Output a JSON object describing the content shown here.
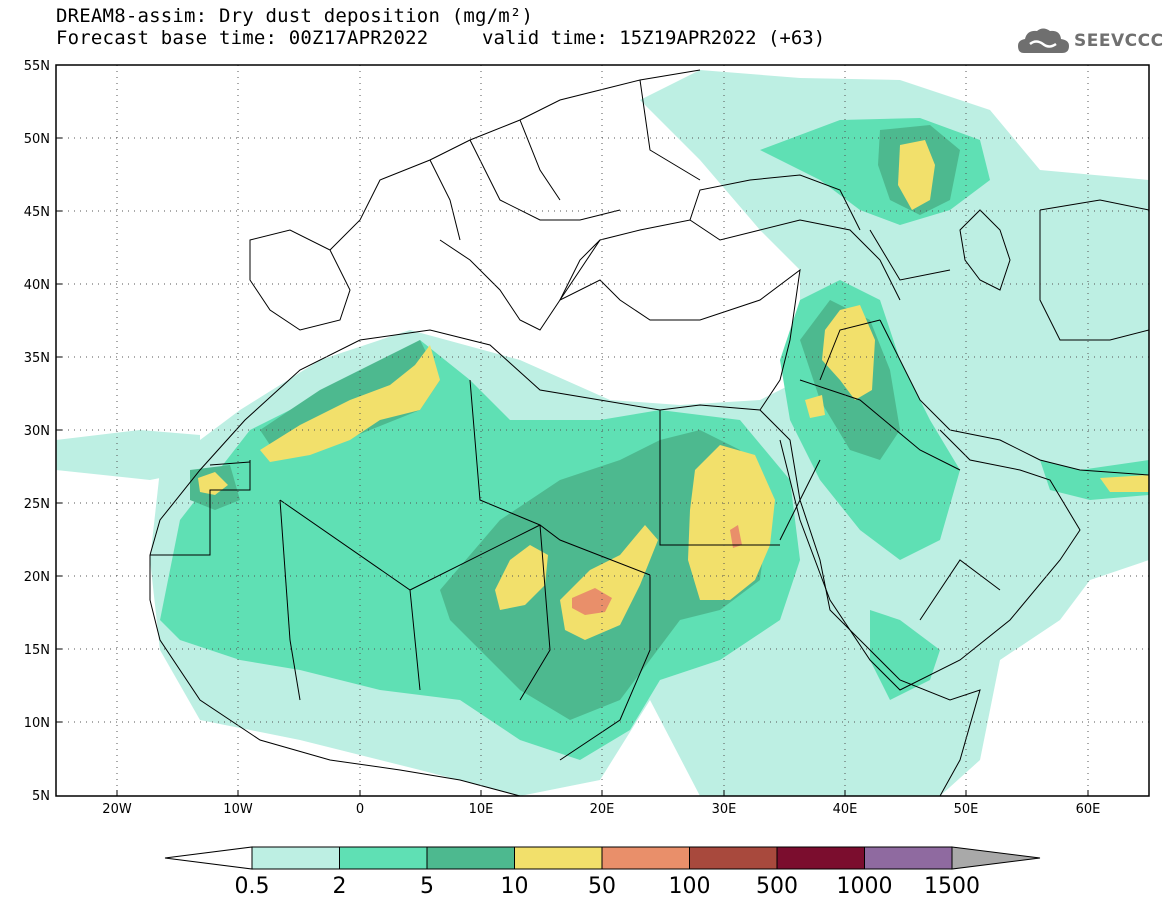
{
  "title": {
    "line1": "DREAM8-assim: Dry dust deposition (mg/m²)",
    "line2_left": "Forecast base time: 00Z17APR2022",
    "line2_right": "valid time: 15Z19APR2022 (+63)"
  },
  "logo": {
    "text": "SEEVCCC",
    "icon": "cloud-logo-icon"
  },
  "axes": {
    "lat_labels": [
      "55N",
      "50N",
      "45N",
      "40N",
      "35N",
      "30N",
      "25N",
      "20N",
      "15N",
      "10N",
      "5N"
    ],
    "lon_labels": [
      "20W",
      "10W",
      "0",
      "10E",
      "20E",
      "30E",
      "40E",
      "50E",
      "60E"
    ]
  },
  "colorbar": {
    "labels": [
      "0.5",
      "2",
      "5",
      "10",
      "50",
      "100",
      "500",
      "1000",
      "1500"
    ],
    "colors": [
      "#bdefe3",
      "#5fe0b4",
      "#4db98f",
      "#f2e06b",
      "#e98f6a",
      "#a8493d",
      "#7b0d2e",
      "#8f6aa0"
    ],
    "under_color": "#ffffff",
    "over_color": "#a9a9a9"
  },
  "colors": {
    "c1": "#bdefe3",
    "c2": "#5fe0b4",
    "c3": "#4db98f",
    "c4": "#f2e06b",
    "c5": "#e98f6a"
  }
}
